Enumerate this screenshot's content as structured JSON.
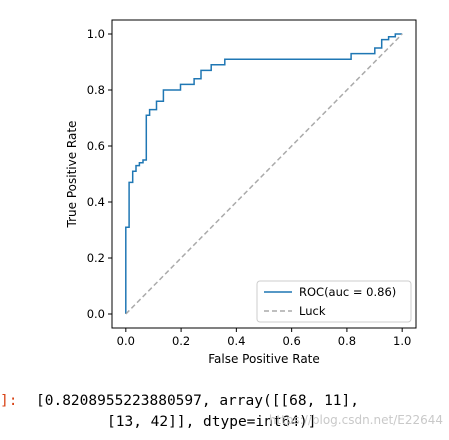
{
  "chart_data": {
    "type": "line",
    "xlabel": "False Positive Rate",
    "ylabel": "True Positive Rate",
    "xlim": [
      -0.05,
      1.05
    ],
    "ylim": [
      -0.05,
      1.05
    ],
    "xticks": [
      "0.0",
      "0.2",
      "0.4",
      "0.6",
      "0.8",
      "1.0"
    ],
    "yticks": [
      "0.0",
      "0.2",
      "0.4",
      "0.6",
      "0.8",
      "1.0"
    ],
    "grid": false,
    "legend_position": "lower-right",
    "series": [
      {
        "name": "ROC(auc = 0.86)",
        "color": "#1f77b4",
        "style": "solid",
        "x": [
          0.0,
          0.0,
          0.0,
          0.012,
          0.012,
          0.025,
          0.025,
          0.037,
          0.037,
          0.049,
          0.049,
          0.062,
          0.062,
          0.074,
          0.074,
          0.086,
          0.086,
          0.111,
          0.111,
          0.136,
          0.136,
          0.198,
          0.198,
          0.247,
          0.247,
          0.272,
          0.272,
          0.309,
          0.309,
          0.358,
          0.358,
          0.815,
          0.815,
          0.901,
          0.901,
          0.926,
          0.926,
          0.951,
          0.951,
          0.975,
          0.975,
          1.0,
          1.0
        ],
        "y": [
          0.0,
          0.02,
          0.31,
          0.31,
          0.47,
          0.47,
          0.51,
          0.51,
          0.53,
          0.53,
          0.54,
          0.54,
          0.55,
          0.55,
          0.71,
          0.71,
          0.73,
          0.73,
          0.76,
          0.76,
          0.8,
          0.8,
          0.82,
          0.82,
          0.84,
          0.84,
          0.87,
          0.87,
          0.89,
          0.89,
          0.91,
          0.91,
          0.93,
          0.93,
          0.95,
          0.95,
          0.98,
          0.98,
          0.99,
          0.99,
          1.0,
          1.0,
          1.0
        ]
      },
      {
        "name": "Luck",
        "color": "#aaaaaa",
        "style": "dashed",
        "x": [
          0.0,
          1.0
        ],
        "y": [
          0.0,
          1.0
        ]
      }
    ]
  },
  "output": {
    "prompt": "]:",
    "line1": "[0.8208955223880597, array([[68, 11],",
    "line2": "[13, 42]], dtype=int64)]",
    "watermark": "https://blog.csdn.net/E22644"
  }
}
